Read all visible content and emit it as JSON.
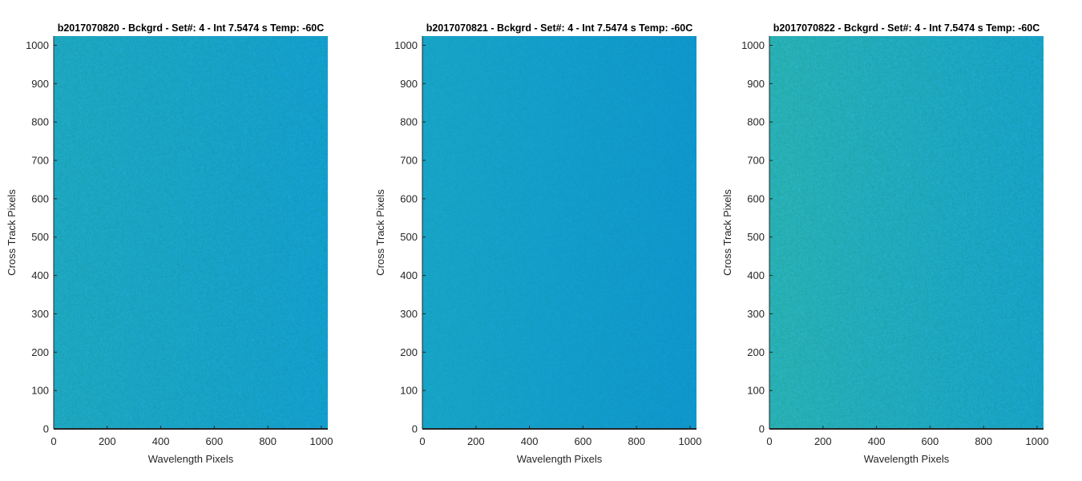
{
  "chart_data": [
    {
      "type": "heatmap",
      "title": "b2017070820 - Bckgrd - Set#: 4 - Int 7.5474 s Temp: -60C",
      "xlabel": "Wavelength Pixels",
      "ylabel": "Cross Track Pixels",
      "xlim": [
        0,
        1024
      ],
      "ylim": [
        0,
        1024
      ],
      "xticks": [
        0,
        200,
        400,
        600,
        800,
        1000
      ],
      "yticks": [
        0,
        100,
        200,
        300,
        400,
        500,
        600,
        700,
        800,
        900,
        1000
      ],
      "grid": false,
      "colors": {
        "left": "#1ea7bf",
        "right": "#149ecb",
        "noise": 0.07
      }
    },
    {
      "type": "heatmap",
      "title": "b2017070821 - Bckgrd - Set#: 4 - Int 7.5474 s Temp: -60C",
      "xlabel": "Wavelength Pixels",
      "ylabel": "Cross Track Pixels",
      "xlim": [
        0,
        1024
      ],
      "ylim": [
        0,
        1024
      ],
      "xticks": [
        0,
        200,
        400,
        600,
        800,
        1000
      ],
      "yticks": [
        0,
        100,
        200,
        300,
        400,
        500,
        600,
        700,
        800,
        900,
        1000
      ],
      "grid": false,
      "colors": {
        "left": "#17a4c6",
        "right": "#0f96cc",
        "noise": 0.05
      }
    },
    {
      "type": "heatmap",
      "title": "b2017070822 - Bckgrd - Set#: 4 - Int 7.5474 s Temp: -60C",
      "xlabel": "Wavelength Pixels",
      "ylabel": "Cross Track Pixels",
      "xlim": [
        0,
        1024
      ],
      "ylim": [
        0,
        1024
      ],
      "xticks": [
        0,
        200,
        400,
        600,
        800,
        1000
      ],
      "yticks": [
        0,
        100,
        200,
        300,
        400,
        500,
        600,
        700,
        800,
        900,
        1000
      ],
      "grid": false,
      "colors": {
        "left": "#28b0b4",
        "right": "#18a2c6",
        "noise": 0.08
      }
    }
  ]
}
